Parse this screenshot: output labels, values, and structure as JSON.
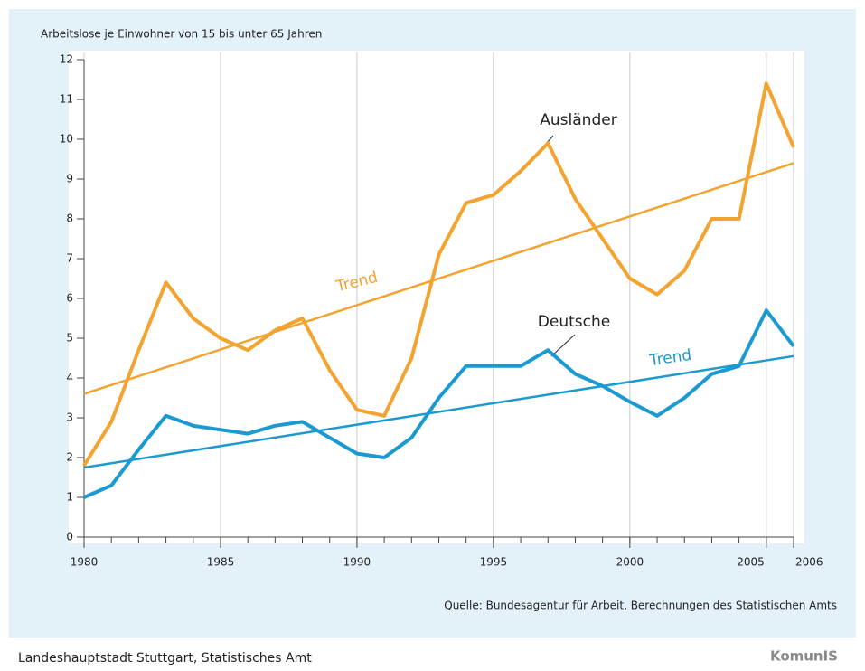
{
  "chart_data": {
    "type": "line",
    "y_label": "Arbeitslose je Einwohner von 15 bis unter 65 Jahren",
    "x": [
      1980,
      1981,
      1982,
      1983,
      1984,
      1985,
      1986,
      1987,
      1988,
      1989,
      1990,
      1991,
      1992,
      1993,
      1994,
      1995,
      1996,
      1997,
      1998,
      1999,
      2000,
      2001,
      2002,
      2003,
      2004,
      2005,
      2006
    ],
    "series": [
      {
        "name": "Ausländer",
        "color": "#f2a330",
        "values": [
          1.8,
          2.9,
          4.7,
          6.4,
          5.5,
          5.0,
          4.7,
          5.2,
          5.5,
          4.2,
          3.2,
          3.05,
          4.5,
          7.1,
          8.4,
          8.6,
          9.2,
          9.9,
          8.5,
          7.5,
          6.5,
          6.1,
          6.7,
          8.0,
          8.0,
          11.4,
          9.8
        ]
      },
      {
        "name": "Deutsche",
        "color": "#1b9ad2",
        "values": [
          1.0,
          1.3,
          2.2,
          3.05,
          2.8,
          2.7,
          2.6,
          2.8,
          2.9,
          2.5,
          2.1,
          2.0,
          2.5,
          3.5,
          4.3,
          4.3,
          4.3,
          4.7,
          4.1,
          3.8,
          3.4,
          3.05,
          3.5,
          4.1,
          4.3,
          5.7,
          4.8
        ]
      }
    ],
    "trends": [
      {
        "name": "Trend",
        "color": "#f2a330",
        "x": [
          1980,
          2006
        ],
        "values": [
          3.6,
          9.4
        ]
      },
      {
        "name": "Trend",
        "color": "#1b9ad2",
        "x": [
          1980,
          2006
        ],
        "values": [
          1.75,
          4.55
        ]
      }
    ],
    "xlim": [
      1980,
      2006
    ],
    "xticks": [
      1980,
      1985,
      1990,
      1995,
      2000,
      2005,
      2006
    ],
    "ylim": [
      0,
      12
    ],
    "yticks": [
      0,
      1,
      2,
      3,
      4,
      5,
      6,
      7,
      8,
      9,
      10,
      11,
      12
    ],
    "grid": "x",
    "source": "Quelle: Bundesagentur für Arbeit, Berechnungen des Statistischen Amts",
    "footer": "Landeshauptstadt Stuttgart, Statistisches Amt",
    "logo": "KomunIS"
  }
}
